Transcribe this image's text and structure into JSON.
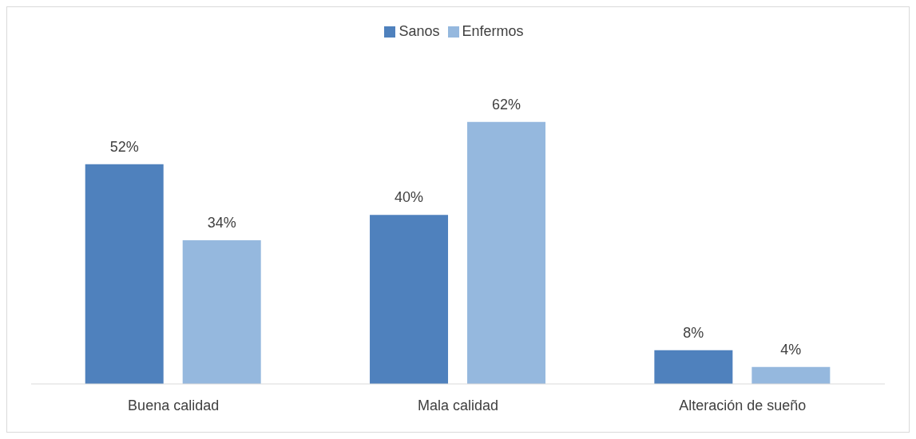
{
  "chart_data": {
    "type": "bar",
    "categories": [
      "Buena calidad",
      "Mala calidad",
      "Alteración de sueño"
    ],
    "series": [
      {
        "name": "Sanos",
        "color": "#4f81bd",
        "values": [
          52,
          40,
          8
        ],
        "value_labels": [
          "52%",
          "40%",
          "8%"
        ]
      },
      {
        "name": "Enfermos",
        "color": "#95b8de",
        "values": [
          34,
          62,
          4
        ],
        "value_labels": [
          "34%",
          "62%",
          "4%"
        ]
      }
    ],
    "legend": "top",
    "grid": false
  }
}
